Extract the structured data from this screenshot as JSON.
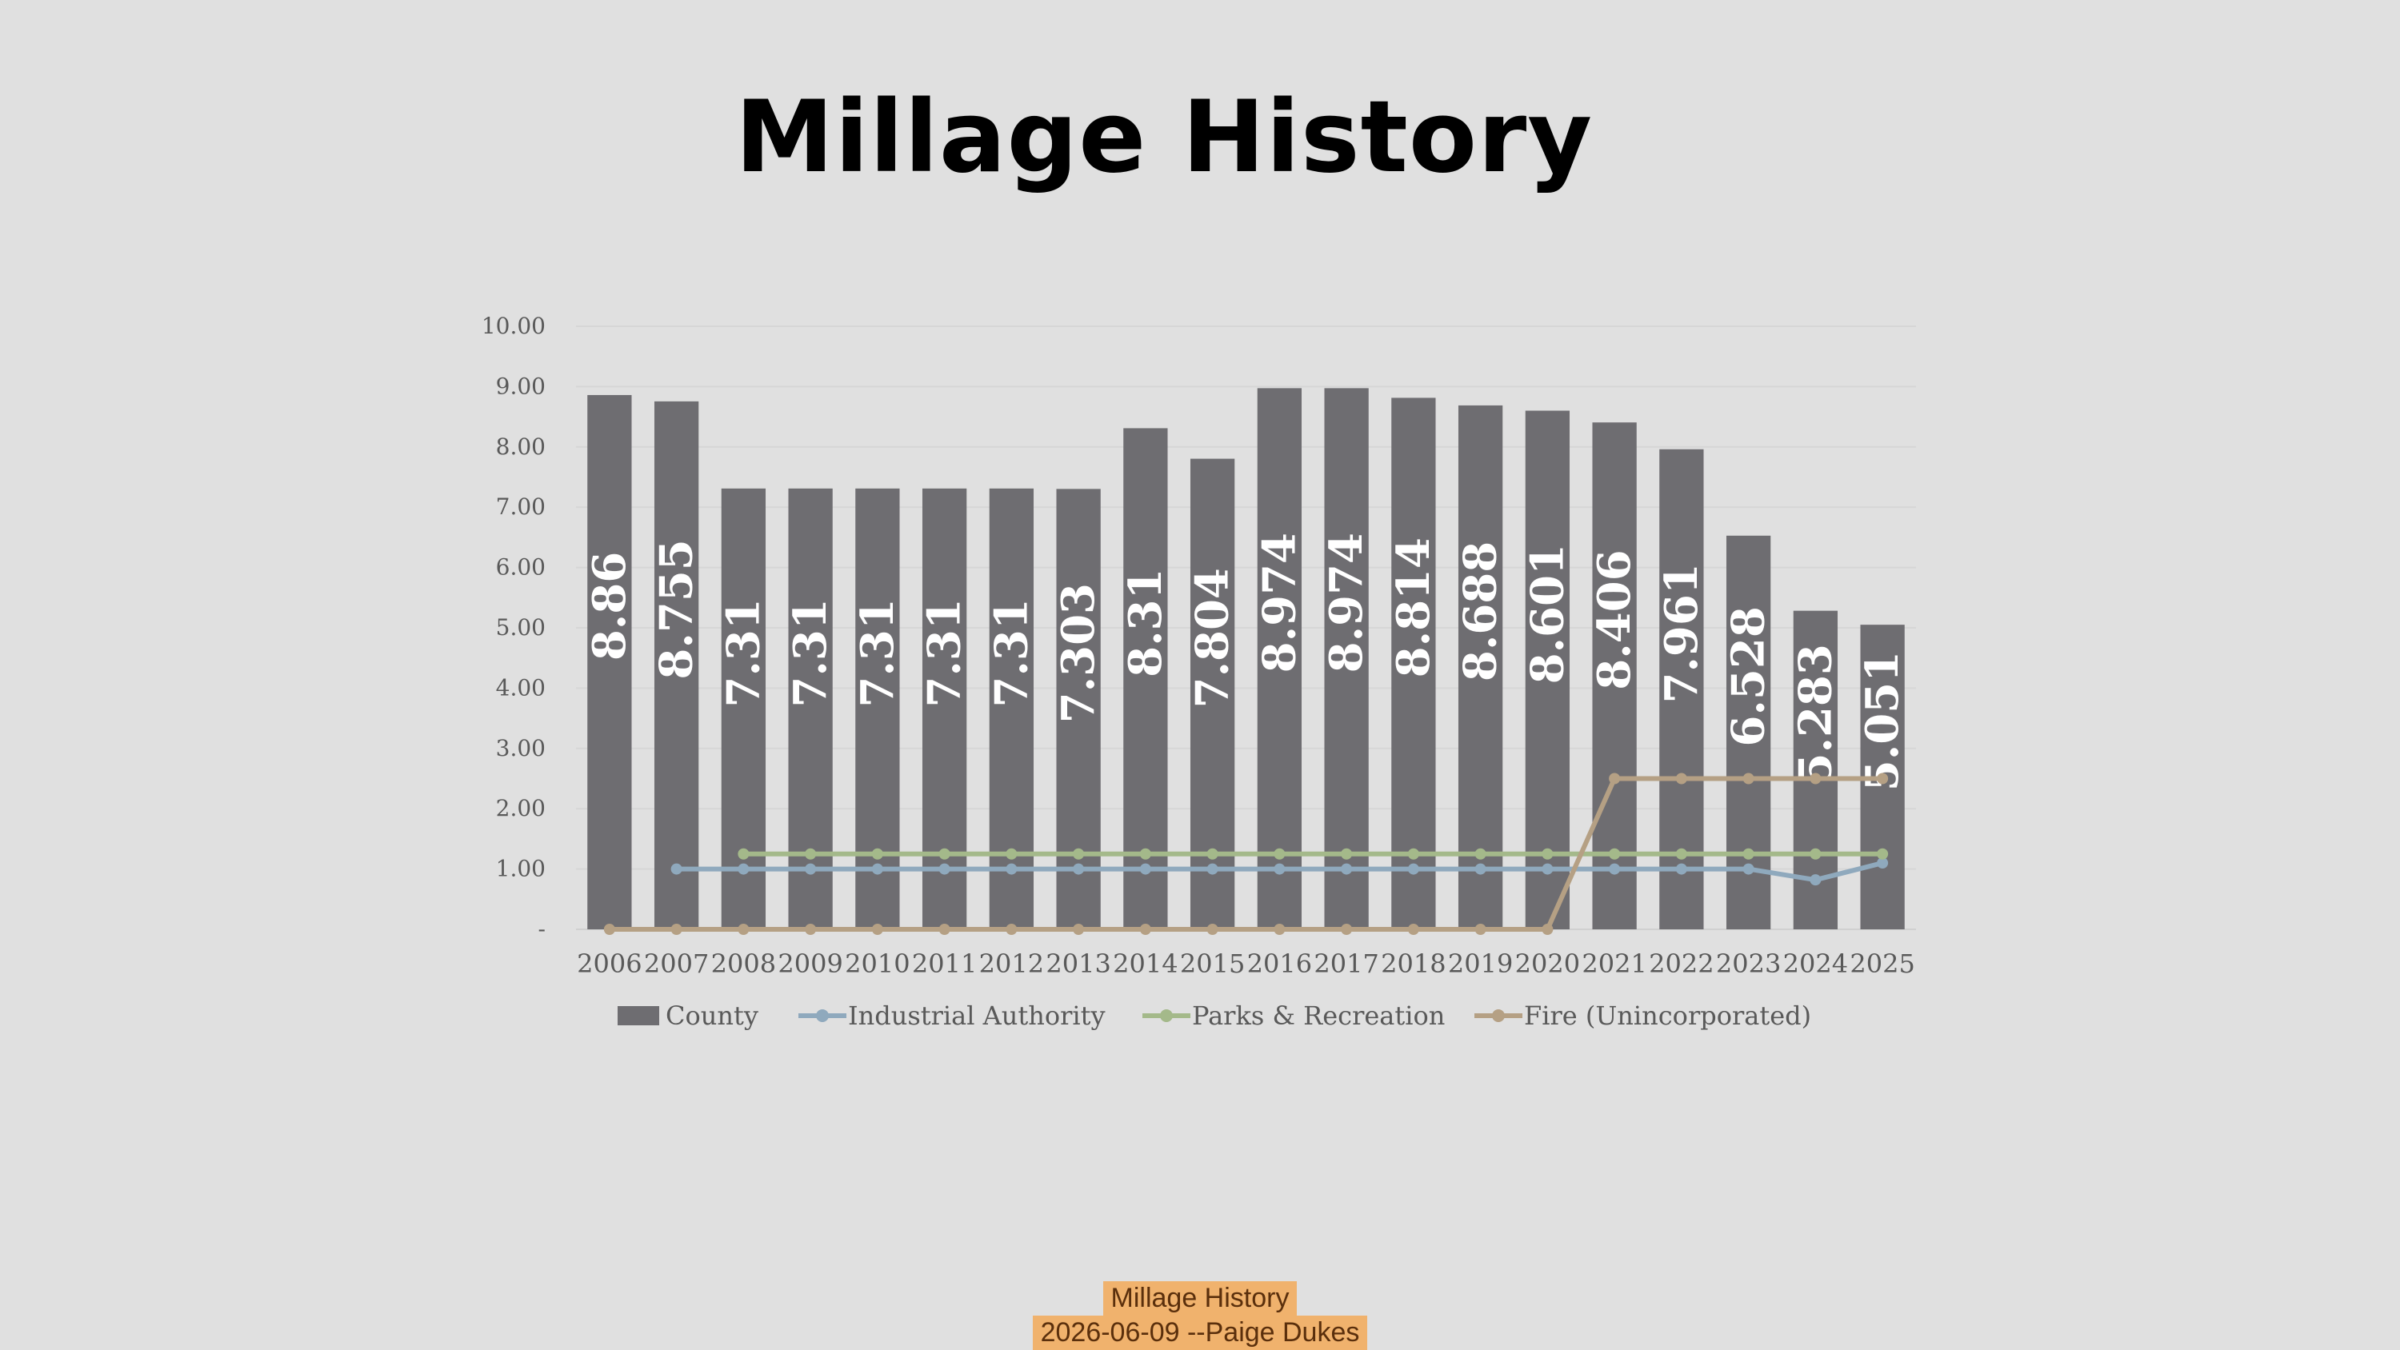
{
  "slide": {
    "title": "Millage History",
    "caption_title": "Millage History",
    "caption_sub": "2026-06-09 --Paige Dukes"
  },
  "chart_data": {
    "type": "bar",
    "title": "Millage History",
    "xlabel": "",
    "ylabel": "",
    "ylim": [
      0,
      10
    ],
    "yticks": [
      "-",
      "1.00",
      "2.00",
      "3.00",
      "4.00",
      "5.00",
      "6.00",
      "7.00",
      "8.00",
      "9.00",
      "10.00"
    ],
    "grid": true,
    "legend": "bottom",
    "categories": [
      "2006",
      "2007",
      "2008",
      "2009",
      "2010",
      "2011",
      "2012",
      "2013",
      "2014",
      "2015",
      "2016",
      "2017",
      "2018",
      "2019",
      "2020",
      "2021",
      "2022",
      "2023",
      "2024",
      "2025"
    ],
    "series": [
      {
        "name": "County",
        "type": "bar",
        "color": "#6e6d71",
        "values": [
          8.86,
          8.755,
          7.31,
          7.31,
          7.31,
          7.31,
          7.31,
          7.303,
          8.31,
          7.804,
          8.974,
          8.974,
          8.814,
          8.688,
          8.601,
          8.406,
          7.961,
          6.528,
          5.283,
          5.051
        ],
        "labels": [
          "8.86",
          "8.755",
          "7.31",
          "7.31",
          "7.31",
          "7.31",
          "7.31",
          "7.303",
          "8.31",
          "7.804",
          "8.974",
          "8.974",
          "8.814",
          "8.688",
          "8.601",
          "8.406",
          "7.961",
          "6.528",
          "5.283",
          "5.051"
        ]
      },
      {
        "name": "Industrial Authority",
        "type": "line",
        "color": "#8fa9bd",
        "values": [
          null,
          1.0,
          1.0,
          1.0,
          1.0,
          1.0,
          1.0,
          1.0,
          1.0,
          1.0,
          1.0,
          1.0,
          1.0,
          1.0,
          1.0,
          1.0,
          1.0,
          1.0,
          0.82,
          1.1
        ]
      },
      {
        "name": "Parks & Recreation",
        "type": "line",
        "color": "#a4b98a",
        "values": [
          null,
          null,
          1.25,
          1.25,
          1.25,
          1.25,
          1.25,
          1.25,
          1.25,
          1.25,
          1.25,
          1.25,
          1.25,
          1.25,
          1.25,
          1.25,
          1.25,
          1.25,
          1.25,
          1.25
        ]
      },
      {
        "name": "Fire (Unincorporated)",
        "type": "line",
        "color": "#b5a084",
        "values": [
          0,
          0,
          0,
          0,
          0,
          0,
          0,
          0,
          0,
          0,
          0,
          0,
          0,
          0,
          0,
          2.5,
          2.5,
          2.5,
          2.5,
          2.5
        ]
      }
    ]
  }
}
